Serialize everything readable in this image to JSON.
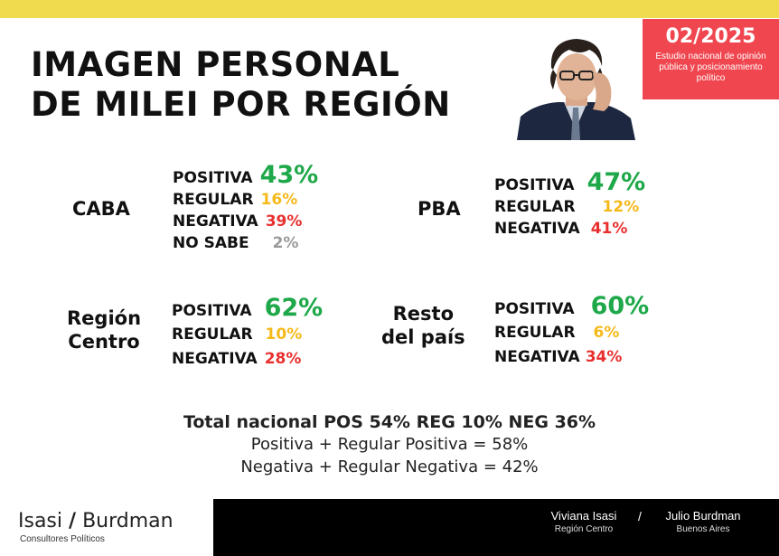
{
  "header": {
    "date": "02/2025",
    "study_description": "Estudio nacional de opinión pública y posicionamiento político"
  },
  "title": {
    "line1": "IMAGEN PERSONAL",
    "line2": "DE MILEI POR REGIÓN"
  },
  "regions": {
    "caba": {
      "name": "CABA",
      "positiva_label": "POSITIVA",
      "positiva": "43%",
      "regular_label": "REGULAR",
      "regular": "16%",
      "negativa_label": "NEGATIVA",
      "negativa": "39%",
      "nosabe_label": "NO SABE",
      "nosabe": "2%"
    },
    "pba": {
      "name": "PBA",
      "positiva_label": "POSITIVA",
      "positiva": "47%",
      "regular_label": "REGULAR",
      "regular": "12%",
      "negativa_label": "NEGATIVA",
      "negativa": "41%"
    },
    "centro": {
      "name_line1": "Región",
      "name_line2": "Centro",
      "positiva_label": "POSITIVA",
      "positiva": "62%",
      "regular_label": "REGULAR",
      "regular": "10%",
      "negativa_label": "NEGATIVA",
      "negativa": "28%"
    },
    "resto": {
      "name_line1": "Resto",
      "name_line2": "del país",
      "positiva_label": "POSITIVA",
      "positiva": "60%",
      "regular_label": "REGULAR",
      "regular": "6%",
      "negativa_label": "NEGATIVA",
      "negativa": "34%"
    }
  },
  "summary": {
    "total": "Total nacional POS 54% REG 10% NEG 36%",
    "line1": "Positiva + Regular Positiva = 58%",
    "line2": "Negativa + Regular Negativa = 42%"
  },
  "footer": {
    "brand_left": "Isasi",
    "brand_slash": "/",
    "brand_right": "Burdman",
    "brand_sub": "Consultores Políticos",
    "sig1_name": "Viviana Isasi",
    "sig1_sub": "Región Centro",
    "sig_slash": "/",
    "sig2_name": "Julio Burdman",
    "sig2_sub": "Buenos Aires"
  },
  "colors": {
    "positive": "#1fa84a",
    "regular": "#f5b91a",
    "negative": "#e8302f",
    "no_sabe": "#9a9a9a",
    "top_bar": "#f0db4f",
    "date_box": "#f0464f"
  }
}
